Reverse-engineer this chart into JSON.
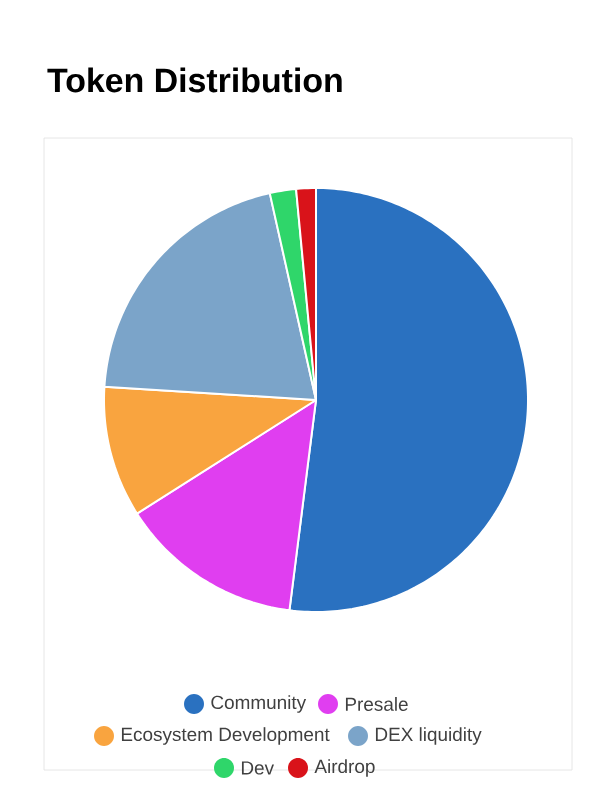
{
  "chart_data": {
    "type": "pie",
    "title": "Token Distribution",
    "categories": [
      "Community",
      "Presale",
      "Ecosystem Development",
      "DEX liquidity",
      "Dev",
      "Airdrop"
    ],
    "values": [
      52,
      14,
      10,
      20.5,
      2,
      1.5
    ],
    "colors": [
      "#2a71c0",
      "#e03ef0",
      "#f9a43f",
      "#7ba4c9",
      "#2fd66a",
      "#d9131a"
    ],
    "legend": "bottom"
  }
}
